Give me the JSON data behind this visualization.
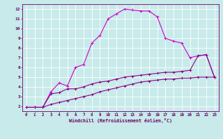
{
  "title": "",
  "xlabel": "Windchill (Refroidissement éolien,°C)",
  "ylabel": "",
  "background_color": "#c8eaea",
  "line_color1": "#cc00cc",
  "line_color2": "#880088",
  "line_color3": "#880088",
  "grid_color": "#ffffff",
  "spine_color": "#660066",
  "tick_color": "#660066",
  "label_color": "#660066",
  "xlim": [
    -0.5,
    23.5
  ],
  "ylim": [
    1.5,
    12.5
  ],
  "xticks": [
    0,
    1,
    2,
    3,
    4,
    5,
    6,
    7,
    8,
    9,
    10,
    11,
    12,
    13,
    14,
    15,
    16,
    17,
    18,
    19,
    20,
    21,
    22,
    23
  ],
  "yticks": [
    2,
    3,
    4,
    5,
    6,
    7,
    8,
    9,
    10,
    11,
    12
  ],
  "line1_x": [
    0,
    1,
    2,
    3,
    4,
    5,
    6,
    7,
    8,
    9,
    10,
    11,
    12,
    13,
    14,
    15,
    16,
    17,
    18,
    19,
    20,
    21,
    22,
    23
  ],
  "line1_y": [
    1.9,
    1.9,
    1.9,
    3.5,
    4.4,
    4.1,
    6.0,
    6.3,
    8.5,
    9.3,
    11.0,
    11.5,
    12.0,
    11.9,
    11.8,
    11.8,
    11.2,
    9.0,
    8.7,
    8.5,
    7.0,
    7.2,
    7.3,
    5.0
  ],
  "line2_x": [
    0,
    1,
    2,
    3,
    4,
    5,
    6,
    7,
    8,
    9,
    10,
    11,
    12,
    13,
    14,
    15,
    16,
    17,
    18,
    19,
    20,
    21,
    22,
    23
  ],
  "line2_y": [
    1.9,
    1.9,
    1.9,
    3.3,
    3.4,
    3.8,
    3.8,
    4.0,
    4.3,
    4.5,
    4.6,
    4.8,
    5.0,
    5.1,
    5.2,
    5.3,
    5.4,
    5.5,
    5.5,
    5.6,
    5.7,
    7.2,
    7.3,
    5.0
  ],
  "line3_x": [
    0,
    1,
    2,
    3,
    4,
    5,
    6,
    7,
    8,
    9,
    10,
    11,
    12,
    13,
    14,
    15,
    16,
    17,
    18,
    19,
    20,
    21,
    22,
    23
  ],
  "line3_y": [
    1.9,
    1.9,
    1.9,
    2.2,
    2.4,
    2.6,
    2.8,
    3.0,
    3.2,
    3.5,
    3.7,
    3.9,
    4.1,
    4.3,
    4.5,
    4.6,
    4.7,
    4.8,
    4.8,
    4.9,
    4.9,
    5.0,
    5.0,
    5.0
  ]
}
